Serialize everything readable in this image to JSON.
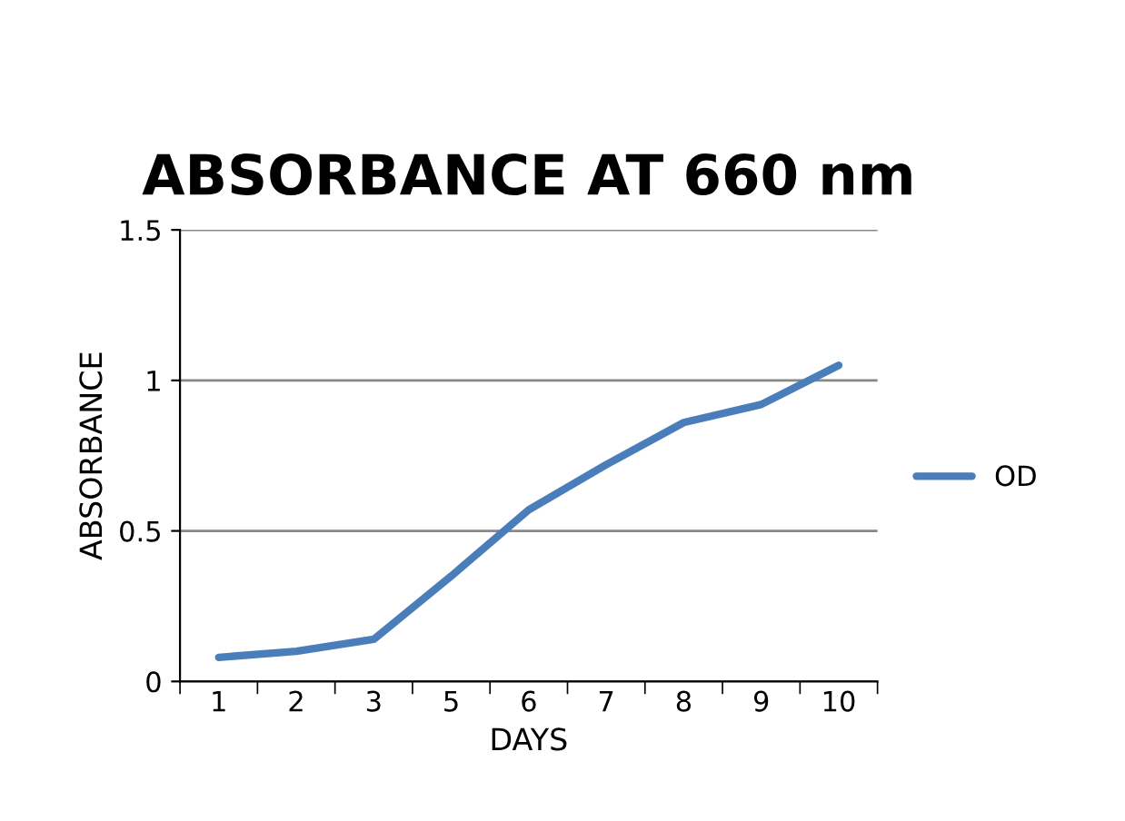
{
  "chart_data": {
    "type": "line",
    "title": "ABSORBANCE AT 660 nm",
    "xlabel": "DAYS",
    "ylabel": "ABSORBANCE",
    "categories": [
      "1",
      "2",
      "3",
      "5",
      "6",
      "7",
      "8",
      "9",
      "10"
    ],
    "series": [
      {
        "name": "OD",
        "color": "#4a7ebb",
        "values": [
          0.08,
          0.1,
          0.14,
          0.35,
          0.57,
          0.72,
          0.86,
          0.92,
          1.05
        ]
      }
    ],
    "ylim": [
      0,
      1.5
    ],
    "yticks": [
      0,
      0.5,
      1,
      1.5
    ],
    "grid": "y",
    "legend": "right",
    "marker": "none",
    "line_style": "solid"
  }
}
